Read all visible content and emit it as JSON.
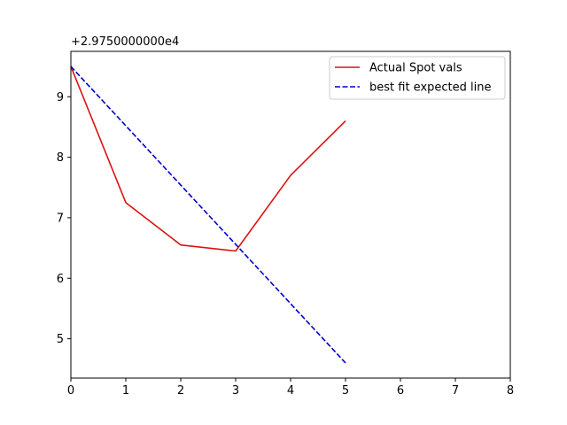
{
  "chart_data": {
    "type": "line",
    "title": "",
    "xlabel": "",
    "ylabel": "",
    "y_offset_label": "+2.9750000000e4",
    "xlim": [
      0,
      8
    ],
    "ylim": [
      4.35,
      9.75
    ],
    "x_ticks": [
      0,
      1,
      2,
      3,
      4,
      5,
      6,
      7,
      8
    ],
    "y_ticks": [
      5,
      6,
      7,
      8,
      9
    ],
    "grid": false,
    "legend_position": "top-right",
    "series": [
      {
        "name": "Actual Spot vals",
        "style": "solid",
        "color": "#dd1111",
        "x": [
          0,
          1,
          2,
          3,
          4,
          5
        ],
        "y": [
          9.5,
          7.25,
          6.55,
          6.45,
          7.7,
          8.6
        ]
      },
      {
        "name": "best fit expected line",
        "style": "dashed",
        "color": "#0000cc",
        "x": [
          0,
          1,
          2,
          3,
          4,
          5
        ],
        "y": [
          9.5,
          8.52,
          7.54,
          6.56,
          5.58,
          4.6
        ]
      }
    ]
  }
}
